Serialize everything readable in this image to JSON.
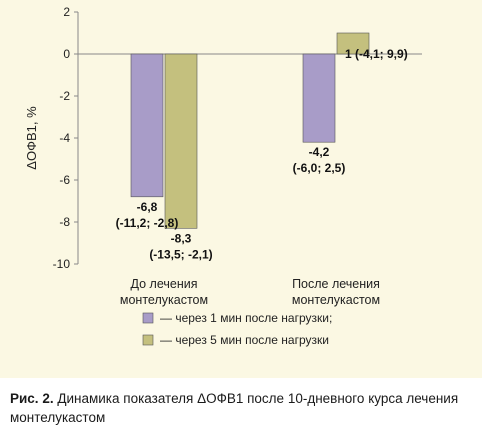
{
  "chart_data": {
    "type": "bar",
    "ylabel": "ΔОФВ1, %",
    "ylim": [
      -10,
      2
    ],
    "yticks": [
      "2",
      "0",
      "-2",
      "-4",
      "-6",
      "-8",
      "-10"
    ],
    "ytick_values": [
      2,
      0,
      -2,
      -4,
      -6,
      -8,
      -10
    ],
    "categories": [
      [
        "До лечения",
        "монтелукастом"
      ],
      [
        "После лечения",
        "монтелукастом"
      ]
    ],
    "series": [
      {
        "name": "— через 1 мин после нагрузки;",
        "color": "#a89cc8",
        "values": [
          -6.8,
          -4.2
        ],
        "labels": [
          [
            "-6,8",
            "(-11,2; -2,8)"
          ],
          [
            "-4,2",
            "(-6,0; 2,5)"
          ]
        ]
      },
      {
        "name": "— через 5 мин после нагрузки",
        "color": "#c4c07e",
        "values": [
          -8.3,
          1
        ],
        "labels": [
          [
            "-8,3",
            "(-13,5; -2,1)"
          ],
          [
            "1 (-4,1; 9,9)"
          ]
        ]
      }
    ],
    "legend_position": "bottom",
    "grid": false
  },
  "caption": {
    "prefix": "Рис. 2.",
    "text": " Динамика показателя ΔОФВ1 после 10-дневного курса лечения монтелукастом"
  }
}
